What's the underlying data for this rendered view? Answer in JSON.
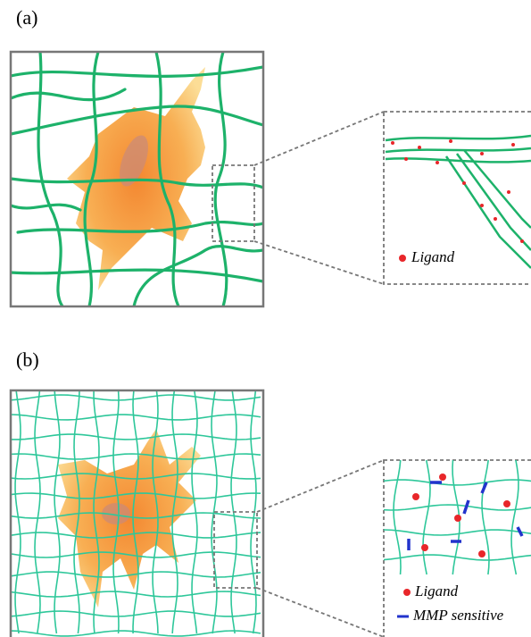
{
  "panel_a": {
    "label": "(a)",
    "legend": {
      "ligand": "Ligand"
    }
  },
  "panel_b": {
    "label": "(b)",
    "legend": {
      "ligand": "Ligand",
      "mmp": "MMP sensitive"
    }
  }
}
